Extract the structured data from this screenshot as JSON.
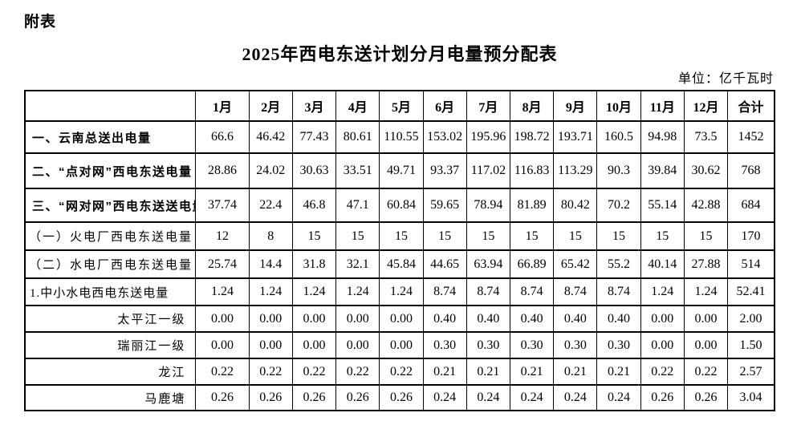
{
  "page": {
    "annotation": "附表",
    "title": "2025年西电东送计划分月电量预分配表",
    "unit_label": "单位：亿千瓦时"
  },
  "table": {
    "corner_label": "",
    "columns": [
      "1月",
      "2月",
      "3月",
      "4月",
      "5月",
      "6月",
      "7月",
      "8月",
      "9月",
      "10月",
      "11月",
      "12月",
      "合计"
    ],
    "rows": [
      {
        "label": "一、云南总送出电量",
        "style": "main",
        "values": [
          "66.6",
          "46.42",
          "77.43",
          "80.61",
          "110.55",
          "153.02",
          "195.96",
          "198.72",
          "193.71",
          "160.5",
          "94.98",
          "73.5",
          "1452"
        ]
      },
      {
        "label": "二、“点对网”西电东送电量",
        "style": "main",
        "values": [
          "28.86",
          "24.02",
          "30.63",
          "33.51",
          "49.71",
          "93.37",
          "117.02",
          "116.83",
          "113.29",
          "90.3",
          "39.84",
          "30.62",
          "768"
        ]
      },
      {
        "label": "三、“网对网”西电东送送电量",
        "style": "main",
        "values": [
          "37.74",
          "22.4",
          "46.8",
          "47.1",
          "60.84",
          "59.65",
          "78.94",
          "81.89",
          "80.42",
          "70.2",
          "55.14",
          "42.88",
          "684"
        ]
      },
      {
        "label": "（一）火电厂西电东送电量",
        "style": "sub",
        "values": [
          "12",
          "8",
          "15",
          "15",
          "15",
          "15",
          "15",
          "15",
          "15",
          "15",
          "15",
          "15",
          "170"
        ]
      },
      {
        "label": "（二）水电厂西电东送电量",
        "style": "sub",
        "values": [
          "25.74",
          "14.4",
          "31.8",
          "32.1",
          "45.84",
          "44.65",
          "63.94",
          "66.89",
          "65.42",
          "55.2",
          "40.14",
          "27.88",
          "514"
        ]
      },
      {
        "label": "1.中小水电西电东送电量",
        "style": "sub2",
        "values": [
          "1.24",
          "1.24",
          "1.24",
          "1.24",
          "1.24",
          "8.74",
          "8.74",
          "8.74",
          "8.74",
          "8.74",
          "1.24",
          "1.24",
          "52.41"
        ]
      },
      {
        "label": "太平江一级",
        "style": "plant",
        "values": [
          "0.00",
          "0.00",
          "0.00",
          "0.00",
          "0.00",
          "0.40",
          "0.40",
          "0.40",
          "0.40",
          "0.40",
          "0.00",
          "0.00",
          "2.00"
        ]
      },
      {
        "label": "瑞丽江一级",
        "style": "plant",
        "values": [
          "0.00",
          "0.00",
          "0.00",
          "0.00",
          "0.00",
          "0.30",
          "0.30",
          "0.30",
          "0.30",
          "0.30",
          "0.00",
          "0.00",
          "1.50"
        ]
      },
      {
        "label": "龙江",
        "style": "plant",
        "values": [
          "0.22",
          "0.22",
          "0.22",
          "0.22",
          "0.22",
          "0.21",
          "0.21",
          "0.21",
          "0.21",
          "0.21",
          "0.22",
          "0.22",
          "2.57"
        ]
      },
      {
        "label": "马鹿塘",
        "style": "plant",
        "values": [
          "0.26",
          "0.26",
          "0.26",
          "0.26",
          "0.26",
          "0.24",
          "0.24",
          "0.24",
          "0.24",
          "0.24",
          "0.26",
          "0.26",
          "3.04"
        ]
      }
    ]
  }
}
